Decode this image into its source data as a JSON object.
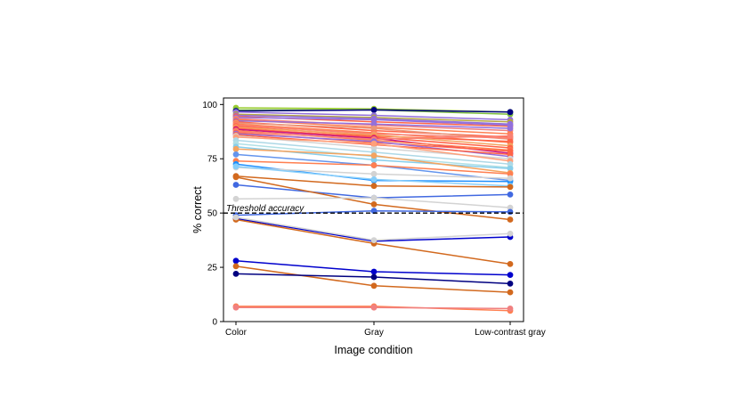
{
  "chart_data": {
    "type": "line",
    "xlabel": "Image condition",
    "ylabel": "% correct",
    "categories": [
      "Color",
      "Gray",
      "Low-contrast gray"
    ],
    "ylim": [
      0,
      103
    ],
    "yticks": [
      0,
      25,
      50,
      75,
      100
    ],
    "threshold": {
      "value": 50,
      "label": "Threshold accuracy",
      "style": "dashed",
      "color": "#000000"
    },
    "series": [
      {
        "color": "#9acd32",
        "values": [
          98.5,
          98,
          96.5
        ]
      },
      {
        "color": "#7fbf3f",
        "values": [
          97.5,
          97.5,
          95.5
        ]
      },
      {
        "color": "#000080",
        "values": [
          97.0,
          97.5,
          96.5
        ]
      },
      {
        "color": "#9370db",
        "values": [
          96.5,
          95.0,
          93.0
        ]
      },
      {
        "color": "#b5a642",
        "values": [
          95.5,
          94.0,
          92.0
        ]
      },
      {
        "color": "#9370db",
        "values": [
          95.0,
          93.5,
          91.0
        ]
      },
      {
        "color": "#ff6347",
        "values": [
          94.5,
          92.0,
          90.0
        ]
      },
      {
        "color": "#9370db",
        "values": [
          94.0,
          93.0,
          90.5
        ]
      },
      {
        "color": "#f08080",
        "values": [
          93.5,
          90.5,
          88.0
        ]
      },
      {
        "color": "#ff7f50",
        "values": [
          93.0,
          89.5,
          86.5
        ]
      },
      {
        "color": "#9370db",
        "values": [
          92.5,
          91.0,
          89.0
        ]
      },
      {
        "color": "#ff6347",
        "values": [
          92.0,
          88.0,
          85.0
        ]
      },
      {
        "color": "#e9967a",
        "values": [
          91.5,
          89.0,
          84.0
        ]
      },
      {
        "color": "#ff7f50",
        "values": [
          91.0,
          87.0,
          82.5
        ]
      },
      {
        "color": "#fa8072",
        "values": [
          90.5,
          86.5,
          84.5
        ]
      },
      {
        "color": "#ff6347",
        "values": [
          90.0,
          85.5,
          83.0
        ]
      },
      {
        "color": "#f4a460",
        "values": [
          89.5,
          86.0,
          81.0
        ]
      },
      {
        "color": "#ff6347",
        "values": [
          89.0,
          85.0,
          80.0
        ]
      },
      {
        "color": "#c71585",
        "values": [
          88.5,
          84.5,
          77.5
        ]
      },
      {
        "color": "#ff7f50",
        "values": [
          88.0,
          83.5,
          79.0
        ]
      },
      {
        "color": "#fa8072",
        "values": [
          87.5,
          84.0,
          85.5
        ]
      },
      {
        "color": "#ff6347",
        "values": [
          87.0,
          82.5,
          78.5
        ]
      },
      {
        "color": "#9370db",
        "values": [
          86.5,
          83.0,
          76.0
        ]
      },
      {
        "color": "#ff6347",
        "values": [
          86.0,
          81.5,
          77.0
        ]
      },
      {
        "color": "#d3d3d3",
        "values": [
          85.5,
          80.0,
          75.0
        ]
      },
      {
        "color": "#ffa07a",
        "values": [
          85.0,
          82.0,
          74.0
        ]
      },
      {
        "color": "#add8e6",
        "values": [
          83.5,
          78.0,
          72.5
        ]
      },
      {
        "color": "#b0e0e6",
        "values": [
          82.0,
          76.0,
          71.0
        ]
      },
      {
        "color": "#87ceeb",
        "values": [
          80.5,
          74.5,
          70.5
        ]
      },
      {
        "color": "#f4a460",
        "values": [
          79.5,
          76.5,
          68.5
        ]
      },
      {
        "color": "#6495ed",
        "values": [
          77.0,
          72.0,
          65.0
        ]
      },
      {
        "color": "#ff7f50",
        "values": [
          74.0,
          72.0,
          68.0
        ]
      },
      {
        "color": "#1e90ff",
        "values": [
          72.5,
          65.0,
          64.5
        ]
      },
      {
        "color": "#d3d3d3",
        "values": [
          71.0,
          68.0,
          66.0
        ]
      },
      {
        "color": "#87cefa",
        "values": [
          71.5,
          65.5,
          62.5
        ]
      },
      {
        "color": "#d2691e",
        "values": [
          67.0,
          62.5,
          62.0
        ]
      },
      {
        "color": "#4169e1",
        "values": [
          63.0,
          57.0,
          58.5
        ]
      },
      {
        "color": "#d2691e",
        "values": [
          66.5,
          54.0,
          47.0
        ]
      },
      {
        "color": "#d3d3d3",
        "values": [
          56.5,
          57.0,
          52.5
        ]
      },
      {
        "color": "#4169e1",
        "values": [
          49.0,
          51.0,
          50.5
        ]
      },
      {
        "color": "#0000cd",
        "values": [
          47.5,
          37.0,
          39.0
        ]
      },
      {
        "color": "#d2691e",
        "values": [
          47.0,
          36.0,
          26.5
        ]
      },
      {
        "color": "#d3d3d3",
        "values": [
          48.0,
          37.5,
          40.5
        ]
      },
      {
        "color": "#0000cd",
        "values": [
          28.0,
          23.0,
          21.5
        ]
      },
      {
        "color": "#d2691e",
        "values": [
          25.5,
          16.5,
          13.5
        ]
      },
      {
        "color": "#000080",
        "values": [
          22.0,
          20.5,
          17.5
        ]
      },
      {
        "color": "#ff7f50",
        "values": [
          7.0,
          7.0,
          5.0
        ]
      },
      {
        "color": "#f08080",
        "values": [
          6.5,
          6.5,
          6.0
        ]
      }
    ]
  }
}
